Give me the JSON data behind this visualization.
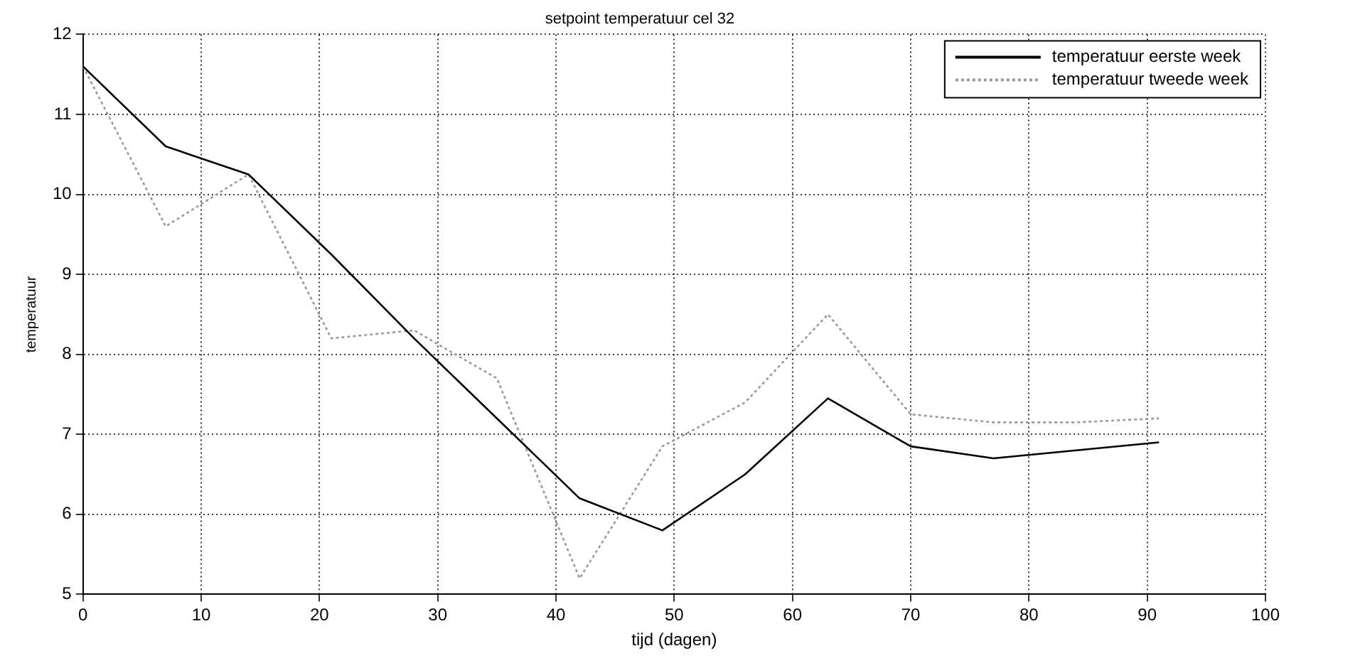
{
  "chart_data": {
    "type": "line",
    "title": "setpoint temperatuur cel 32",
    "xlabel": "tijd (dagen)",
    "ylabel": "temperatuur",
    "x": [
      0,
      7,
      14,
      21,
      28,
      35,
      42,
      49,
      56,
      63,
      70,
      77,
      84,
      91
    ],
    "series": [
      {
        "name": "temperatuur eerste week",
        "color": "#000000",
        "line_style": "solid",
        "values": [
          11.6,
          10.6,
          10.25,
          9.25,
          8.2,
          7.2,
          6.2,
          5.8,
          6.5,
          7.45,
          6.85,
          6.7,
          6.8,
          6.9
        ]
      },
      {
        "name": "temperatuur tweede week",
        "color": "#9a9a9a",
        "line_style": "dotted",
        "values": [
          11.6,
          9.6,
          10.25,
          8.2,
          8.3,
          7.7,
          5.2,
          6.85,
          7.4,
          8.5,
          7.25,
          7.15,
          7.15,
          7.2
        ]
      }
    ],
    "xlim": [
      0,
      100
    ],
    "xticks": [
      0,
      10,
      20,
      30,
      40,
      50,
      60,
      70,
      80,
      90,
      100
    ],
    "ylim": [
      5,
      12
    ],
    "yticks": [
      5,
      6,
      7,
      8,
      9,
      10,
      11,
      12
    ],
    "grid": true,
    "legend": "top right",
    "marker": "none"
  }
}
